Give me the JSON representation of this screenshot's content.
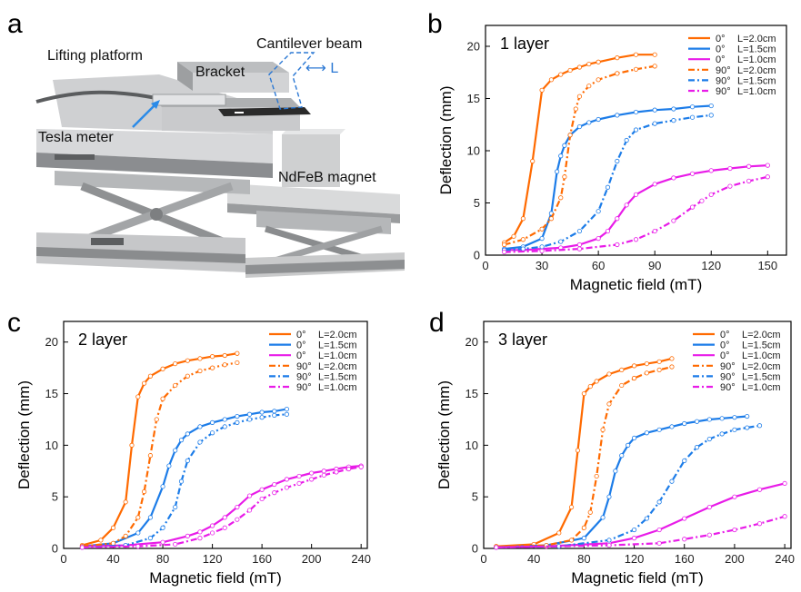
{
  "panel_a": {
    "letter": "a",
    "labels": {
      "lifting_platform": "Lifting platform",
      "cantilever_beam": "Cantilever beam",
      "bracket": "Bracket",
      "length": "⟷ L",
      "tesla_meter": "Tesla meter",
      "magnet": "NdFeB magnet"
    }
  },
  "series_styles": [
    {
      "color": "#FF6A00",
      "dash": "solid"
    },
    {
      "color": "#1C7CE8",
      "dash": "solid"
    },
    {
      "color": "#E81CE8",
      "dash": "solid"
    },
    {
      "color": "#FF6A00",
      "dash": "dashdot"
    },
    {
      "color": "#1C7CE8",
      "dash": "dashdot"
    },
    {
      "color": "#E81CE8",
      "dash": "dashdot"
    }
  ],
  "legend_labels": [
    {
      "angle": "0°",
      "length": "L=2.0cm"
    },
    {
      "angle": "0°",
      "length": "L=1.5cm"
    },
    {
      "angle": "0°",
      "length": "L=1.0cm"
    },
    {
      "angle": "90°",
      "length": "L=2.0cm"
    },
    {
      "angle": "90°",
      "length": "L=1.5cm"
    },
    {
      "angle": "90°",
      "length": "L=1.0cm"
    }
  ],
  "chart_data": [
    {
      "panel": "b",
      "type": "line",
      "title": "1 layer",
      "xlabel": "Magnetic field (mT)",
      "ylabel": "Deflection (mm)",
      "xlim": [
        0,
        160
      ],
      "ylim": [
        0,
        22
      ],
      "xticks": [
        0,
        30,
        60,
        90,
        120,
        150
      ],
      "yticks": [
        0,
        5,
        10,
        15,
        20
      ],
      "series": [
        {
          "x": [
            10,
            15,
            20,
            25,
            30,
            35,
            40,
            45,
            50,
            55,
            60,
            70,
            80,
            90
          ],
          "y": [
            1.2,
            1.8,
            3.5,
            9,
            15.8,
            16.8,
            17.3,
            17.7,
            18.0,
            18.3,
            18.5,
            18.9,
            19.2,
            19.2
          ]
        },
        {
          "x": [
            10,
            20,
            30,
            35,
            38,
            40,
            42,
            45,
            50,
            55,
            60,
            70,
            80,
            90,
            100,
            110,
            120
          ],
          "y": [
            0.6,
            0.8,
            1.6,
            4,
            8,
            9.5,
            10.5,
            11.5,
            12.3,
            12.7,
            13.0,
            13.4,
            13.7,
            13.9,
            14.0,
            14.2,
            14.3
          ]
        },
        {
          "x": [
            10,
            20,
            30,
            40,
            50,
            60,
            65,
            70,
            75,
            80,
            90,
            100,
            110,
            120,
            130,
            140,
            150
          ],
          "y": [
            0.5,
            0.5,
            0.6,
            0.7,
            1.0,
            1.6,
            2.3,
            3.5,
            4.8,
            5.8,
            6.8,
            7.4,
            7.8,
            8.1,
            8.3,
            8.5,
            8.6
          ]
        },
        {
          "x": [
            10,
            20,
            30,
            35,
            40,
            42,
            45,
            48,
            50,
            55,
            60,
            70,
            80,
            90
          ],
          "y": [
            1.0,
            1.5,
            2.5,
            3.5,
            5.5,
            7.5,
            11.5,
            14.0,
            15.2,
            16.2,
            16.8,
            17.4,
            17.8,
            18.1
          ]
        },
        {
          "x": [
            10,
            20,
            30,
            40,
            50,
            60,
            65,
            70,
            75,
            80,
            90,
            100,
            110,
            120
          ],
          "y": [
            0.5,
            0.6,
            0.8,
            1.3,
            2.3,
            4.2,
            6.5,
            9.0,
            11.0,
            12.0,
            12.6,
            12.9,
            13.2,
            13.4
          ]
        },
        {
          "x": [
            10,
            30,
            50,
            70,
            80,
            90,
            100,
            110,
            115,
            120,
            130,
            140,
            150
          ],
          "y": [
            0.3,
            0.4,
            0.6,
            1.0,
            1.5,
            2.3,
            3.3,
            4.6,
            5.2,
            5.8,
            6.6,
            7.1,
            7.5
          ]
        }
      ]
    },
    {
      "panel": "c",
      "type": "line",
      "title": "2 layer",
      "xlabel": "Magnetic field (mT)",
      "ylabel": "Deflection (mm)",
      "xlim": [
        0,
        245
      ],
      "ylim": [
        0,
        22
      ],
      "xticks": [
        0,
        40,
        80,
        120,
        160,
        200,
        240
      ],
      "yticks": [
        0,
        5,
        10,
        15,
        20
      ],
      "series": [
        {
          "x": [
            15,
            30,
            40,
            50,
            55,
            60,
            65,
            70,
            80,
            90,
            100,
            110,
            120,
            130,
            140
          ],
          "y": [
            0.3,
            0.8,
            2.0,
            4.5,
            10,
            14.7,
            16.0,
            16.7,
            17.4,
            17.9,
            18.2,
            18.4,
            18.6,
            18.7,
            18.9
          ]
        },
        {
          "x": [
            15,
            40,
            60,
            70,
            80,
            85,
            90,
            95,
            100,
            110,
            120,
            130,
            140,
            150,
            160,
            170,
            180
          ],
          "y": [
            0.2,
            0.5,
            1.5,
            3.0,
            6.0,
            8.0,
            9.5,
            10.5,
            11.1,
            11.8,
            12.2,
            12.5,
            12.8,
            13.0,
            13.2,
            13.3,
            13.5
          ]
        },
        {
          "x": [
            15,
            50,
            80,
            100,
            110,
            120,
            130,
            140,
            150,
            160,
            170,
            180,
            190,
            200,
            210,
            220,
            230,
            240
          ],
          "y": [
            0.2,
            0.3,
            0.6,
            1.2,
            1.6,
            2.2,
            3.0,
            4.0,
            5.1,
            5.7,
            6.2,
            6.7,
            7.0,
            7.3,
            7.5,
            7.7,
            7.9,
            8.0
          ]
        },
        {
          "x": [
            15,
            40,
            50,
            60,
            65,
            70,
            75,
            80,
            90,
            100,
            110,
            120,
            130,
            140
          ],
          "y": [
            0.2,
            0.5,
            1.2,
            3.0,
            5.5,
            9.0,
            12.5,
            14.5,
            15.8,
            16.7,
            17.2,
            17.5,
            17.8,
            18.0
          ]
        },
        {
          "x": [
            15,
            50,
            70,
            80,
            90,
            95,
            100,
            110,
            120,
            130,
            140,
            150,
            160,
            170,
            180
          ],
          "y": [
            0.1,
            0.3,
            1.0,
            2.0,
            4.0,
            6.5,
            8.5,
            10.3,
            11.2,
            11.8,
            12.2,
            12.5,
            12.7,
            12.9,
            13.0
          ]
        },
        {
          "x": [
            15,
            60,
            90,
            110,
            120,
            130,
            140,
            150,
            160,
            170,
            180,
            190,
            200,
            210,
            220,
            230,
            240
          ],
          "y": [
            0.1,
            0.2,
            0.4,
            1.0,
            1.5,
            2.0,
            2.8,
            3.7,
            4.8,
            5.4,
            5.9,
            6.3,
            6.7,
            7.1,
            7.4,
            7.7,
            7.9
          ]
        }
      ]
    },
    {
      "panel": "d",
      "type": "line",
      "title": "3 layer",
      "xlabel": "Magnetic field (mT)",
      "ylabel": "Deflection (mm)",
      "xlim": [
        0,
        245
      ],
      "ylim": [
        0,
        22
      ],
      "xticks": [
        0,
        40,
        80,
        120,
        160,
        200,
        240
      ],
      "yticks": [
        0,
        5,
        10,
        15,
        20
      ],
      "series": [
        {
          "x": [
            10,
            40,
            60,
            70,
            75,
            80,
            85,
            90,
            100,
            110,
            120,
            130,
            140,
            150
          ],
          "y": [
            0.2,
            0.4,
            1.5,
            4.0,
            9.5,
            15.0,
            15.7,
            16.2,
            16.9,
            17.3,
            17.7,
            17.9,
            18.1,
            18.4
          ]
        },
        {
          "x": [
            10,
            50,
            80,
            95,
            100,
            105,
            110,
            115,
            120,
            130,
            140,
            150,
            160,
            170,
            180,
            190,
            200,
            210
          ],
          "y": [
            0.1,
            0.3,
            1.0,
            3.0,
            5.0,
            7.5,
            9.0,
            10.0,
            10.7,
            11.2,
            11.5,
            11.8,
            12.1,
            12.3,
            12.5,
            12.6,
            12.7,
            12.8
          ]
        },
        {
          "x": [
            10,
            50,
            100,
            120,
            140,
            160,
            180,
            200,
            220,
            240
          ],
          "y": [
            0.1,
            0.2,
            0.5,
            1.0,
            1.8,
            2.9,
            4.0,
            5.0,
            5.7,
            6.3
          ]
        },
        {
          "x": [
            10,
            50,
            70,
            80,
            85,
            90,
            95,
            100,
            110,
            120,
            130,
            140,
            150
          ],
          "y": [
            0.2,
            0.3,
            0.8,
            2.0,
            3.5,
            7.0,
            11.5,
            14.0,
            15.8,
            16.5,
            17.0,
            17.3,
            17.6
          ]
        },
        {
          "x": [
            10,
            60,
            100,
            120,
            130,
            140,
            150,
            160,
            170,
            180,
            190,
            200,
            210,
            220
          ],
          "y": [
            0.1,
            0.2,
            0.8,
            1.8,
            2.9,
            4.5,
            6.5,
            8.5,
            9.8,
            10.6,
            11.1,
            11.5,
            11.7,
            11.9
          ]
        },
        {
          "x": [
            10,
            100,
            140,
            160,
            180,
            200,
            220,
            240
          ],
          "y": [
            0.1,
            0.3,
            0.5,
            0.9,
            1.3,
            1.8,
            2.4,
            3.1
          ]
        }
      ]
    }
  ]
}
